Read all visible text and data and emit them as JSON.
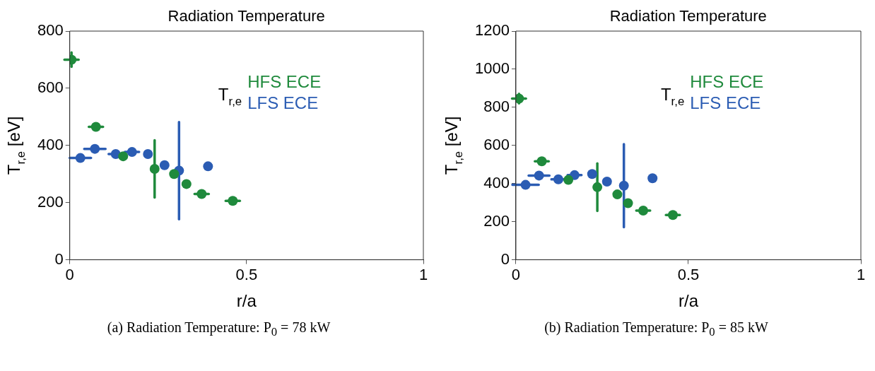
{
  "chart_data": [
    {
      "type": "scatter",
      "title": "Radiation Temperature",
      "xlabel": "r/a",
      "ylabel": "T$_{r,e}$ [eV]",
      "legend_title": "T$_{r,e}$",
      "legend": "top right",
      "marker": "circle",
      "grid": false,
      "xlim": [
        0,
        1
      ],
      "xticks": [
        0,
        0.5,
        1
      ],
      "ylim": [
        0,
        800
      ],
      "yticks": [
        0,
        200,
        400,
        600,
        800
      ],
      "series": [
        {
          "name": "HFS ECE",
          "color": "#1f8a3c",
          "x": [
            0.005,
            0.074,
            0.151,
            0.24,
            0.295,
            0.33,
            0.373,
            0.461
          ],
          "values": [
            700,
            465,
            362,
            318,
            300,
            265,
            230,
            206
          ],
          "errors": [
            25,
            null,
            null,
            100,
            null,
            null,
            null,
            null
          ],
          "xerrors": [
            0.02,
            0.02,
            null,
            null,
            null,
            null,
            0.02,
            0.02
          ]
        },
        {
          "name": "LFS ECE",
          "color": "#2b5cb3",
          "x": [
            0.03,
            0.071,
            0.13,
            0.176,
            0.221,
            0.268,
            0.309,
            0.391
          ],
          "values": [
            356,
            388,
            370,
            377,
            370,
            331,
            312,
            327
          ],
          "errors": [
            null,
            null,
            null,
            null,
            null,
            null,
            170,
            null
          ],
          "xerrors": [
            0.03,
            0.03,
            0.02,
            0.02,
            null,
            null,
            null,
            null
          ]
        }
      ],
      "annotations": [
        "(a) Radiation Temperature: P$_{0}$ = 78 kW"
      ]
    },
    {
      "type": "scatter",
      "title": "Radiation Temperature",
      "xlabel": "r/a",
      "ylabel": "T$_{r,e}$ [eV]",
      "legend_title": "T$_{r,e}$",
      "legend": "top right",
      "marker": "circle",
      "grid": false,
      "xlim": [
        0,
        1
      ],
      "xticks": [
        0,
        0.5,
        1
      ],
      "ylim": [
        0,
        1200
      ],
      "yticks": [
        0,
        200,
        400,
        600,
        800,
        1000,
        1200
      ],
      "series": [
        {
          "name": "HFS ECE",
          "color": "#1f8a3c",
          "x": [
            0.009,
            0.075,
            0.152,
            0.236,
            0.294,
            0.325,
            0.369,
            0.455
          ],
          "values": [
            846,
            517,
            419,
            381,
            343,
            297,
            258,
            235
          ],
          "errors": [
            25,
            null,
            null,
            125,
            null,
            null,
            null,
            null
          ],
          "xerrors": [
            0.02,
            0.02,
            null,
            null,
            null,
            null,
            0.02,
            0.02
          ]
        },
        {
          "name": "LFS ECE",
          "color": "#2b5cb3",
          "x": [
            0.028,
            0.067,
            0.123,
            0.17,
            0.221,
            0.264,
            0.313,
            0.396
          ],
          "values": [
            393,
            442,
            422,
            444,
            450,
            410,
            389,
            428
          ],
          "errors": [
            null,
            null,
            null,
            null,
            null,
            null,
            218,
            null
          ],
          "xerrors": [
            0.038,
            0.03,
            0.02,
            0.02,
            null,
            null,
            null,
            null
          ]
        }
      ],
      "annotations": [
        "(b) Radiation Temperature: P$_{0}$ = 85 kW"
      ]
    }
  ]
}
